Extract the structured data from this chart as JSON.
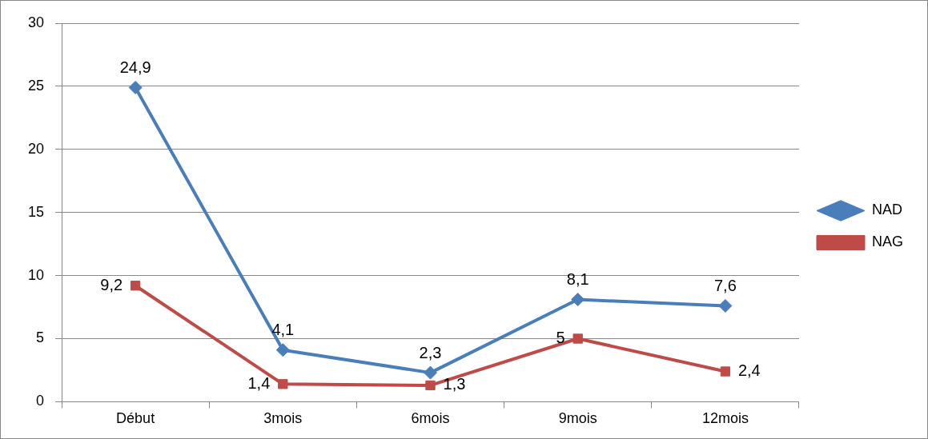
{
  "chart_data": {
    "type": "line",
    "categories": [
      "Début",
      "3mois",
      "6mois",
      "9mois",
      "12mois"
    ],
    "series": [
      {
        "name": "NAD",
        "color": "#4a7ebb",
        "marker": "diamond",
        "values": [
          24.9,
          4.1,
          2.3,
          8.1,
          7.6
        ],
        "value_labels": [
          "24,9",
          "4,1",
          "2,3",
          "8,1",
          "7,6"
        ]
      },
      {
        "name": "NAG",
        "color": "#be4b48",
        "marker": "square",
        "values": [
          9.2,
          1.4,
          1.3,
          5,
          2.4
        ],
        "value_labels": [
          "9,2",
          "1,4",
          "1,3",
          "5",
          "2,4"
        ]
      }
    ],
    "ylim": [
      0,
      30
    ],
    "yticks": [
      0,
      5,
      10,
      15,
      20,
      25,
      30
    ],
    "grid": "y",
    "legend": "right",
    "line_style": "solid"
  }
}
